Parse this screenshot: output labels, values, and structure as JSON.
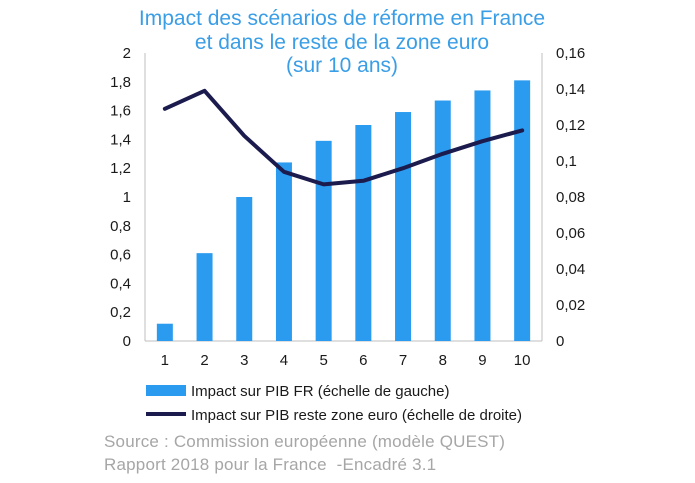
{
  "chart_data": {
    "type": "bar",
    "title": [
      "Impact des scénarios de réforme en France",
      "et dans le reste de la zone euro",
      "(sur 10 ans)"
    ],
    "categories": [
      "1",
      "2",
      "3",
      "4",
      "5",
      "6",
      "7",
      "8",
      "9",
      "10"
    ],
    "series": [
      {
        "name": "Impact sur PIB FR (échelle de gauche)",
        "type": "bar",
        "axis": "left",
        "color": "#2b9bef",
        "values": [
          0.12,
          0.61,
          1.0,
          1.24,
          1.39,
          1.5,
          1.59,
          1.67,
          1.74,
          1.81
        ]
      },
      {
        "name": "Impact sur PIB reste zone euro (échelle de droite)",
        "type": "line",
        "axis": "right",
        "color": "#1c1b4d",
        "values": [
          0.129,
          0.139,
          0.114,
          0.094,
          0.087,
          0.089,
          0.096,
          0.104,
          0.111,
          0.117
        ]
      }
    ],
    "y_left": {
      "min": 0,
      "max": 2,
      "ticks": [
        "0",
        "0,2",
        "0,4",
        "0,6",
        "0,8",
        "1",
        "1,2",
        "1,4",
        "1,6",
        "1,8",
        "2"
      ]
    },
    "y_right": {
      "min": 0,
      "max": 0.16,
      "ticks": [
        "0",
        "0,02",
        "0,04",
        "0,06",
        "0,08",
        "0,1",
        "0,12",
        "0,14",
        "0,16"
      ]
    },
    "legend_position": "bottom"
  },
  "source": {
    "line1": "Source : Commission européenne (modèle QUEST)",
    "line2": "Rapport 2018 pour la France  -Encadré 3.1"
  }
}
